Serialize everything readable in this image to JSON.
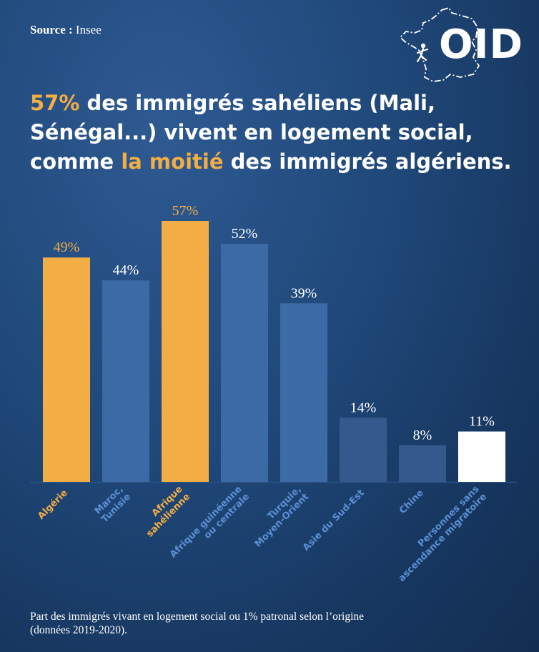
{
  "source": {
    "label": "Source :",
    "name": "Insee"
  },
  "logo": {
    "text": "OID"
  },
  "headline": {
    "l1_highlight": "57%",
    "l1_rest": " des immigrés sahéliens (Mali,",
    "l2": "Sénégal...) vivent en logement social,",
    "l3_pre": "comme ",
    "l3_highlight": "la moitié",
    "l3_post": " des immigrés algériens."
  },
  "colors": {
    "highlight": "#f2ad45",
    "bar_default": "#3b6aa4",
    "bar_dark": "#34598c",
    "bar_reference": "#ffffff",
    "label_default": "#5b8fd4",
    "value_text": "#ffffff"
  },
  "chart_data": {
    "type": "bar",
    "categories": [
      "Algérie",
      "Maroc,\nTunisie",
      "Afrique\nsahélienne",
      "Afrique guinéenne\nou centrale",
      "Turquie,\nMoyen-Orient",
      "Asie du Sud-Est",
      "Chine",
      "Personnes sans\nascendance migratoire"
    ],
    "values": [
      49,
      44,
      57,
      52,
      39,
      14,
      8,
      11
    ],
    "value_labels": [
      "49%",
      "44%",
      "57%",
      "52%",
      "39%",
      "14%",
      "8%",
      "11%"
    ],
    "highlighted": [
      true,
      false,
      true,
      false,
      false,
      false,
      false,
      false
    ],
    "reference": [
      false,
      false,
      false,
      false,
      false,
      false,
      false,
      true
    ],
    "ylim": [
      0,
      57
    ],
    "grid": false,
    "legend": "none",
    "title": "",
    "xlabel": "",
    "ylabel": ""
  },
  "footnote": {
    "line1": "Part des immigrés vivant en logement social ou 1% patronal selon l’origine",
    "line2": "(données 2019-2020)."
  }
}
